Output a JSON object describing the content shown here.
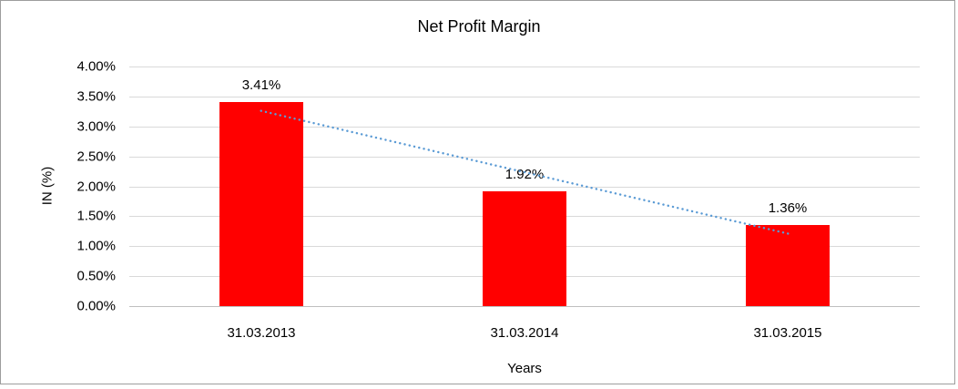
{
  "window": {
    "background": "#FFFFFF",
    "border_color": "#9D9D9D"
  },
  "chart_data": {
    "type": "bar",
    "title": "Net Profit Margin",
    "xlabel": "Years",
    "ylabel": "IN (%)",
    "categories": [
      "31.03.2013",
      "31.03.2014",
      "31.03.2015"
    ],
    "values": [
      3.41,
      1.92,
      1.36
    ],
    "data_labels": [
      "3.41%",
      "1.92%",
      "1.36%"
    ],
    "bar_color": "#FF0000",
    "ylim": [
      0,
      4
    ],
    "ytick_values": [
      0,
      0.5,
      1,
      1.5,
      2,
      2.5,
      3,
      3.5,
      4
    ],
    "ytick_labels": [
      "0.00%",
      "0.50%",
      "1.00%",
      "1.50%",
      "2.00%",
      "2.50%",
      "3.00%",
      "3.50%",
      "4.00%"
    ],
    "grid": true,
    "gridline_color": "#D9D9D9",
    "legend": "none",
    "trendline": {
      "type": "linear",
      "style": "dotted",
      "color": "#5B9BD5",
      "start_value": 3.26,
      "end_value": 1.21
    }
  }
}
